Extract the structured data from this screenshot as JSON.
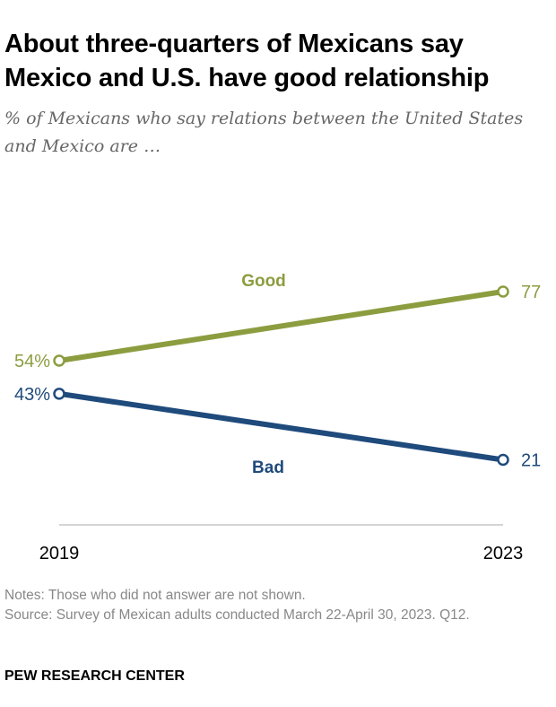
{
  "header": {
    "title": "About three-quarters of Mexicans say Mexico and U.S. have good relationship",
    "subtitle": "% of Mexicans who say relations between the United States and Mexico are …"
  },
  "chart_data": {
    "type": "line",
    "x": [
      "2019",
      "2023"
    ],
    "series": [
      {
        "name": "Good",
        "values": [
          54,
          77
        ],
        "labels": [
          "54%",
          "77"
        ],
        "color": "#8c9d40"
      },
      {
        "name": "Bad",
        "values": [
          43,
          21
        ],
        "labels": [
          "43%",
          "21"
        ],
        "color": "#1f4a7c"
      }
    ],
    "xlabel": "",
    "ylabel": "",
    "ylim": [
      0,
      100
    ],
    "grid": false,
    "legend": "inline labels on lines"
  },
  "footer": {
    "notes": "Notes: Those who did not answer are not shown.",
    "source": "Source: Survey of Mexican adults conducted March 22-April 30, 2023. Q12.",
    "brand": "PEW RESEARCH CENTER"
  },
  "colors": {
    "axis": "#aaaaaa",
    "text": "#000000",
    "muted": "#888888"
  }
}
